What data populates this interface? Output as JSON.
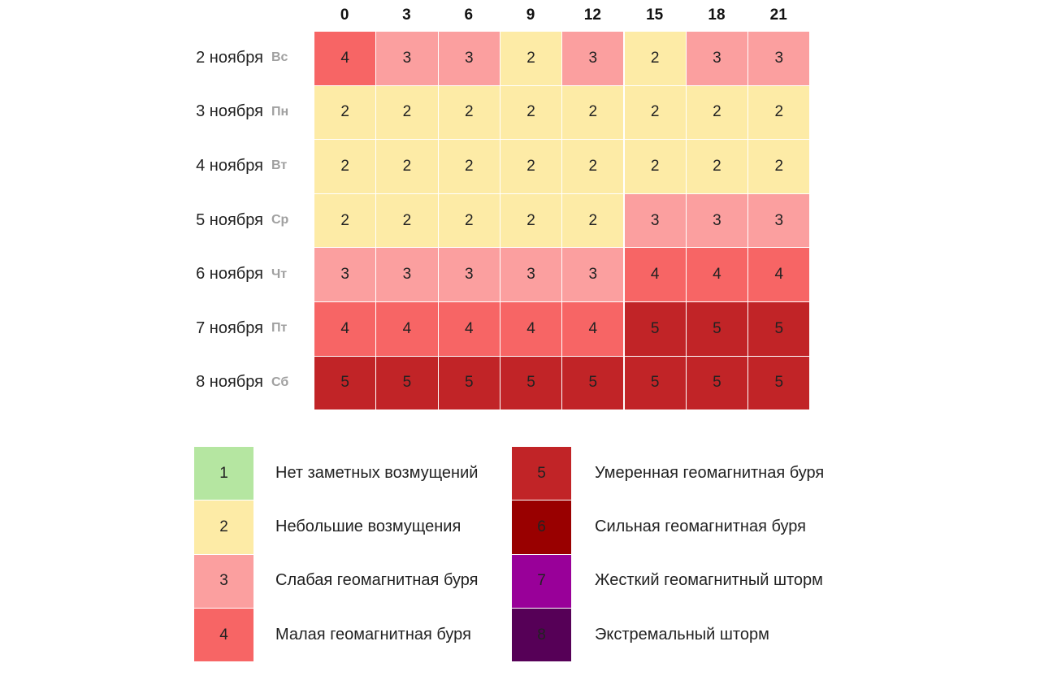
{
  "table": {
    "columns": [
      0,
      3,
      6,
      9,
      12,
      15,
      18,
      21
    ],
    "rows": [
      {
        "date": "2 ноября",
        "weekday": "Вс",
        "values": [
          4,
          3,
          3,
          2,
          3,
          2,
          3,
          3
        ]
      },
      {
        "date": "3 ноября",
        "weekday": "Пн",
        "values": [
          2,
          2,
          2,
          2,
          2,
          2,
          2,
          2
        ]
      },
      {
        "date": "4 ноября",
        "weekday": "Вт",
        "values": [
          2,
          2,
          2,
          2,
          2,
          2,
          2,
          2
        ]
      },
      {
        "date": "5 ноября",
        "weekday": "Ср",
        "values": [
          2,
          2,
          2,
          2,
          2,
          3,
          3,
          3
        ]
      },
      {
        "date": "6 ноября",
        "weekday": "Чт",
        "values": [
          3,
          3,
          3,
          3,
          3,
          4,
          4,
          4
        ]
      },
      {
        "date": "7 ноября",
        "weekday": "Пт",
        "values": [
          4,
          4,
          4,
          4,
          4,
          5,
          5,
          5
        ]
      },
      {
        "date": "8 ноября",
        "weekday": "Сб",
        "values": [
          5,
          5,
          5,
          5,
          5,
          5,
          5,
          5
        ]
      }
    ]
  },
  "legend": [
    {
      "level": 1,
      "label": "Нет заметных возмущений",
      "color": "#b5e6a1"
    },
    {
      "level": 2,
      "label": "Небольшие возмущения",
      "color": "#fdeba6"
    },
    {
      "level": 3,
      "label": "Слабая геомагнитная буря",
      "color": "#fb9f9f"
    },
    {
      "level": 4,
      "label": "Малая геомагнитная буря",
      "color": "#f76565"
    },
    {
      "level": 5,
      "label": "Умеренная геомагнитная буря",
      "color": "#c12427"
    },
    {
      "level": 6,
      "label": "Сильная геомагнитная буря",
      "color": "#990000"
    },
    {
      "level": 7,
      "label": "Жесткий геомагнитный шторм",
      "color": "#990099"
    },
    {
      "level": 8,
      "label": "Экстремальный шторм",
      "color": "#560057"
    }
  ]
}
